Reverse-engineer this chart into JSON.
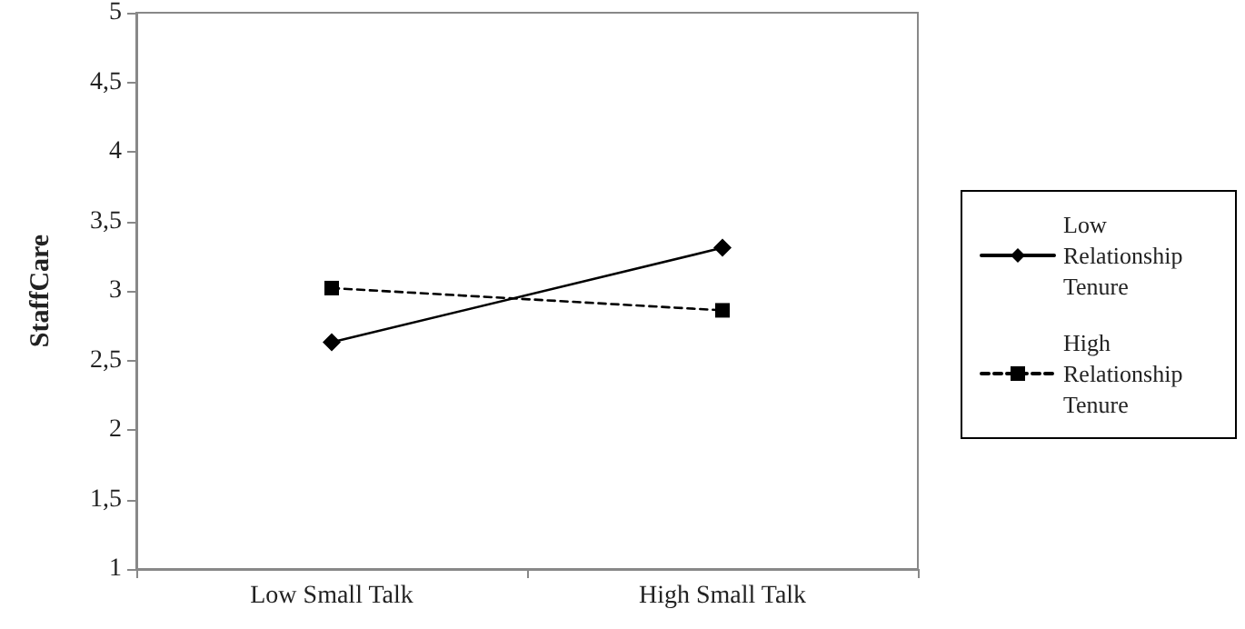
{
  "chart_data": {
    "type": "line",
    "ylabel": "StaffCare",
    "categories": [
      "Low Small Talk",
      "High Small Talk"
    ],
    "series": [
      {
        "name": "Low Relationship Tenure",
        "color": "#000000",
        "values": [
          2.63,
          3.31
        ],
        "marker": "diamond",
        "line_style": "solid"
      },
      {
        "name": "High Relationship Tenure",
        "color": "#000000",
        "values": [
          3.02,
          2.86
        ],
        "marker": "square",
        "line_style": "dashed"
      }
    ],
    "ylim": [
      1,
      5
    ],
    "yticks": [
      {
        "value": 1,
        "label": "1"
      },
      {
        "value": 1.5,
        "label": "1,5"
      },
      {
        "value": 2,
        "label": "2"
      },
      {
        "value": 2.5,
        "label": "2,5"
      },
      {
        "value": 3,
        "label": "3"
      },
      {
        "value": 3.5,
        "label": "3,5"
      },
      {
        "value": 4,
        "label": "4"
      },
      {
        "value": 4.5,
        "label": "4,5"
      },
      {
        "value": 5,
        "label": "5"
      }
    ],
    "grid": false,
    "legend": "right"
  }
}
